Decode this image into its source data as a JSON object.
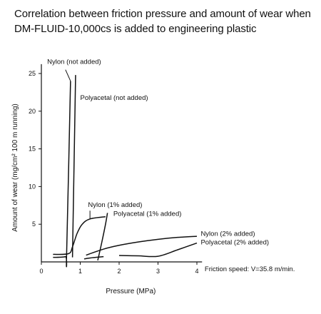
{
  "title_line1": "Correlation between friction pressure and amount of wear when",
  "title_line2": "DM-FLUID-10,000cs is added to engineering plastic",
  "chart_data": {
    "type": "line",
    "xlabel": "Pressure (MPa)",
    "ylabel": "Amount of wear (mg/cm² 100 m running)",
    "xlim": [
      0,
      4.5
    ],
    "ylim": [
      0,
      27
    ],
    "x_ticks": [
      0,
      1,
      2,
      3,
      4
    ],
    "y_ticks": [
      5,
      10,
      15,
      20,
      25
    ],
    "grid": false,
    "annotation": "Friction speed: V=35.8 m/min.",
    "series": [
      {
        "name": "Nylon (not added)",
        "points": [
          [
            0.3,
            0.6
          ],
          [
            0.62,
            0.7
          ],
          [
            0.65,
            1.2
          ],
          [
            0.75,
            24.0
          ]
        ],
        "label_at": [
          0.15,
          26.3
        ],
        "leader": [
          [
            0.62,
            25.5
          ],
          [
            0.75,
            24.0
          ]
        ]
      },
      {
        "name": "Polyacetal (not added)",
        "points": [
          [
            0.8,
            0.6
          ],
          [
            0.88,
            24.8
          ]
        ],
        "label_at": [
          1.0,
          21.5
        ],
        "leader": null
      },
      {
        "name": "Nylon (1% added)",
        "points": [
          [
            0.3,
            1.0
          ],
          [
            0.7,
            1.1
          ],
          [
            0.8,
            2.0
          ],
          [
            0.92,
            3.8
          ],
          [
            1.05,
            5.0
          ],
          [
            1.25,
            5.7
          ],
          [
            1.65,
            6.0
          ]
        ],
        "label_at": [
          1.2,
          7.3
        ],
        "leader": [
          [
            1.25,
            6.8
          ],
          [
            1.25,
            5.7
          ]
        ]
      },
      {
        "name": "Polyacetal (1% added)",
        "points": [
          [
            1.45,
            0.2
          ],
          [
            1.55,
            2.5
          ],
          [
            1.65,
            5.0
          ],
          [
            1.7,
            6.5
          ]
        ],
        "label_at": [
          1.85,
          6.1
        ],
        "leader": null
      },
      {
        "name": "Nylon (2% added)",
        "points": [
          [
            1.15,
            0.9
          ],
          [
            1.6,
            1.7
          ],
          [
            2.0,
            2.2
          ],
          [
            2.5,
            2.65
          ],
          [
            3.0,
            3.0
          ],
          [
            3.5,
            3.25
          ],
          [
            4.0,
            3.4
          ]
        ],
        "label_at": [
          4.1,
          3.45
        ],
        "leader": null
      },
      {
        "name": "Polyacetal (2% added)",
        "points": [
          [
            1.1,
            0.4
          ],
          [
            1.3,
            0.55
          ],
          [
            1.5,
            0.65
          ],
          [
            1.6,
            0.7
          ]
        ],
        "label_at": [
          4.1,
          2.3
        ],
        "leader": null
      },
      {
        "name": "",
        "points": [
          [
            2.0,
            0.85
          ],
          [
            2.5,
            0.8
          ],
          [
            3.0,
            0.75
          ],
          [
            3.5,
            1.6
          ],
          [
            4.0,
            2.5
          ]
        ],
        "label_at": null,
        "leader": null
      }
    ]
  }
}
